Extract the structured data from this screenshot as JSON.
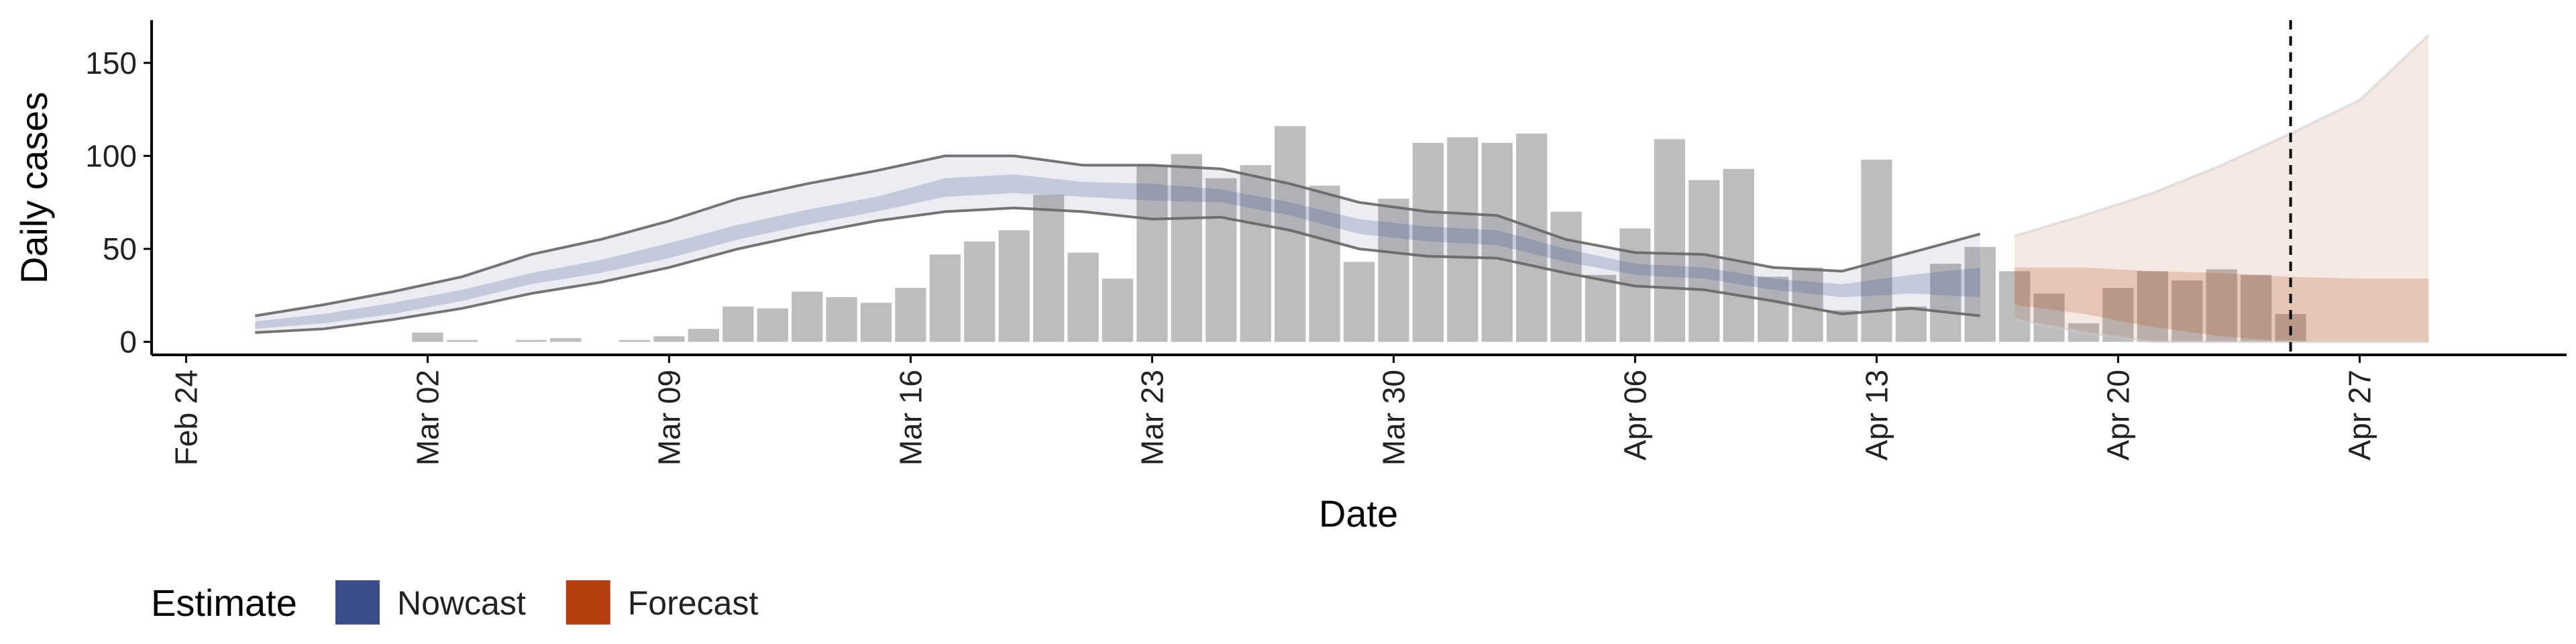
{
  "chart_data": {
    "type": "bar",
    "x_label": "Date",
    "y_label": "Daily cases",
    "xlim": [
      "Feb 23",
      "May 03"
    ],
    "xticks": [
      "Feb 24",
      "Mar 02",
      "Mar 09",
      "Mar 16",
      "Mar 23",
      "Mar 30",
      "Apr 06",
      "Apr 13",
      "Apr 20",
      "Apr 27"
    ],
    "ylim": [
      -7,
      173
    ],
    "yticks": [
      0,
      50,
      100,
      150
    ],
    "vline": "Apr 25",
    "legend_title": "Estimate",
    "legend_position": "bottom-left",
    "bars": {
      "color": "#bdbdbd",
      "x": [
        "Mar 02",
        "Mar 03",
        "Mar 04",
        "Mar 05",
        "Mar 06",
        "Mar 07",
        "Mar 08",
        "Mar 09",
        "Mar 10",
        "Mar 11",
        "Mar 12",
        "Mar 13",
        "Mar 14",
        "Mar 15",
        "Mar 16",
        "Mar 17",
        "Mar 18",
        "Mar 19",
        "Mar 20",
        "Mar 21",
        "Mar 22",
        "Mar 23",
        "Mar 24",
        "Mar 25",
        "Mar 26",
        "Mar 27",
        "Mar 28",
        "Mar 29",
        "Mar 30",
        "Mar 31",
        "Apr 01",
        "Apr 02",
        "Apr 03",
        "Apr 04",
        "Apr 05",
        "Apr 06",
        "Apr 07",
        "Apr 08",
        "Apr 09",
        "Apr 10",
        "Apr 11",
        "Apr 12",
        "Apr 13",
        "Apr 14",
        "Apr 15",
        "Apr 16",
        "Apr 17",
        "Apr 18",
        "Apr 19",
        "Apr 20",
        "Apr 21",
        "Apr 22",
        "Apr 23",
        "Apr 24",
        "Apr 25"
      ],
      "values": [
        5,
        1,
        0,
        1,
        2,
        0,
        1,
        3,
        7,
        19,
        18,
        27,
        24,
        21,
        29,
        47,
        54,
        60,
        79,
        48,
        34,
        95,
        101,
        88,
        95,
        116,
        84,
        43,
        77,
        107,
        110,
        107,
        112,
        70,
        36,
        61,
        109,
        87,
        93,
        35,
        40,
        17,
        98,
        19,
        42,
        51,
        38,
        26,
        10,
        29,
        38,
        33,
        39,
        36,
        15
      ]
    },
    "series": [
      {
        "name": "Nowcast",
        "color": "#3a4f8a",
        "x": [
          "Feb 26",
          "Feb 28",
          "Mar 01",
          "Mar 03",
          "Mar 05",
          "Mar 07",
          "Mar 09",
          "Mar 11",
          "Mar 13",
          "Mar 15",
          "Mar 17",
          "Mar 19",
          "Mar 21",
          "Mar 23",
          "Mar 25",
          "Mar 27",
          "Mar 29",
          "Mar 31",
          "Apr 02",
          "Apr 04",
          "Apr 06",
          "Apr 08",
          "Apr 10",
          "Apr 12",
          "Apr 14",
          "Apr 16"
        ],
        "upper": [
          14,
          20,
          27,
          35,
          47,
          55,
          65,
          77,
          85,
          92,
          100,
          100,
          95,
          95,
          93,
          85,
          75,
          70,
          68,
          55,
          48,
          47,
          40,
          38,
          48,
          58
        ],
        "lower": [
          5,
          7,
          12,
          18,
          26,
          32,
          40,
          50,
          58,
          65,
          70,
          72,
          70,
          66,
          67,
          60,
          50,
          46,
          45,
          37,
          30,
          28,
          22,
          15,
          18,
          14
        ],
        "inner_upper": [
          11,
          15,
          21,
          28,
          37,
          44,
          53,
          63,
          71,
          78,
          88,
          90,
          86,
          85,
          82,
          75,
          66,
          62,
          60,
          50,
          42,
          40,
          34,
          31,
          36,
          40
        ],
        "inner_lower": [
          7,
          10,
          15,
          22,
          31,
          37,
          45,
          55,
          63,
          70,
          78,
          80,
          78,
          76,
          75,
          68,
          58,
          54,
          52,
          43,
          36,
          34,
          28,
          24,
          26,
          24
        ]
      },
      {
        "name": "Forecast",
        "color": "#b5400f",
        "x": [
          "Apr 17",
          "Apr 19",
          "Apr 21",
          "Apr 23",
          "Apr 25",
          "Apr 27",
          "Apr 29"
        ],
        "upper": [
          57,
          68,
          80,
          95,
          112,
          130,
          165
        ],
        "lower": [
          12,
          5,
          0,
          0,
          0,
          0,
          0
        ],
        "inner_upper": [
          40,
          40,
          38,
          37,
          35,
          34,
          34
        ],
        "inner_lower": [
          20,
          15,
          8,
          3,
          0,
          0,
          0
        ]
      }
    ]
  }
}
